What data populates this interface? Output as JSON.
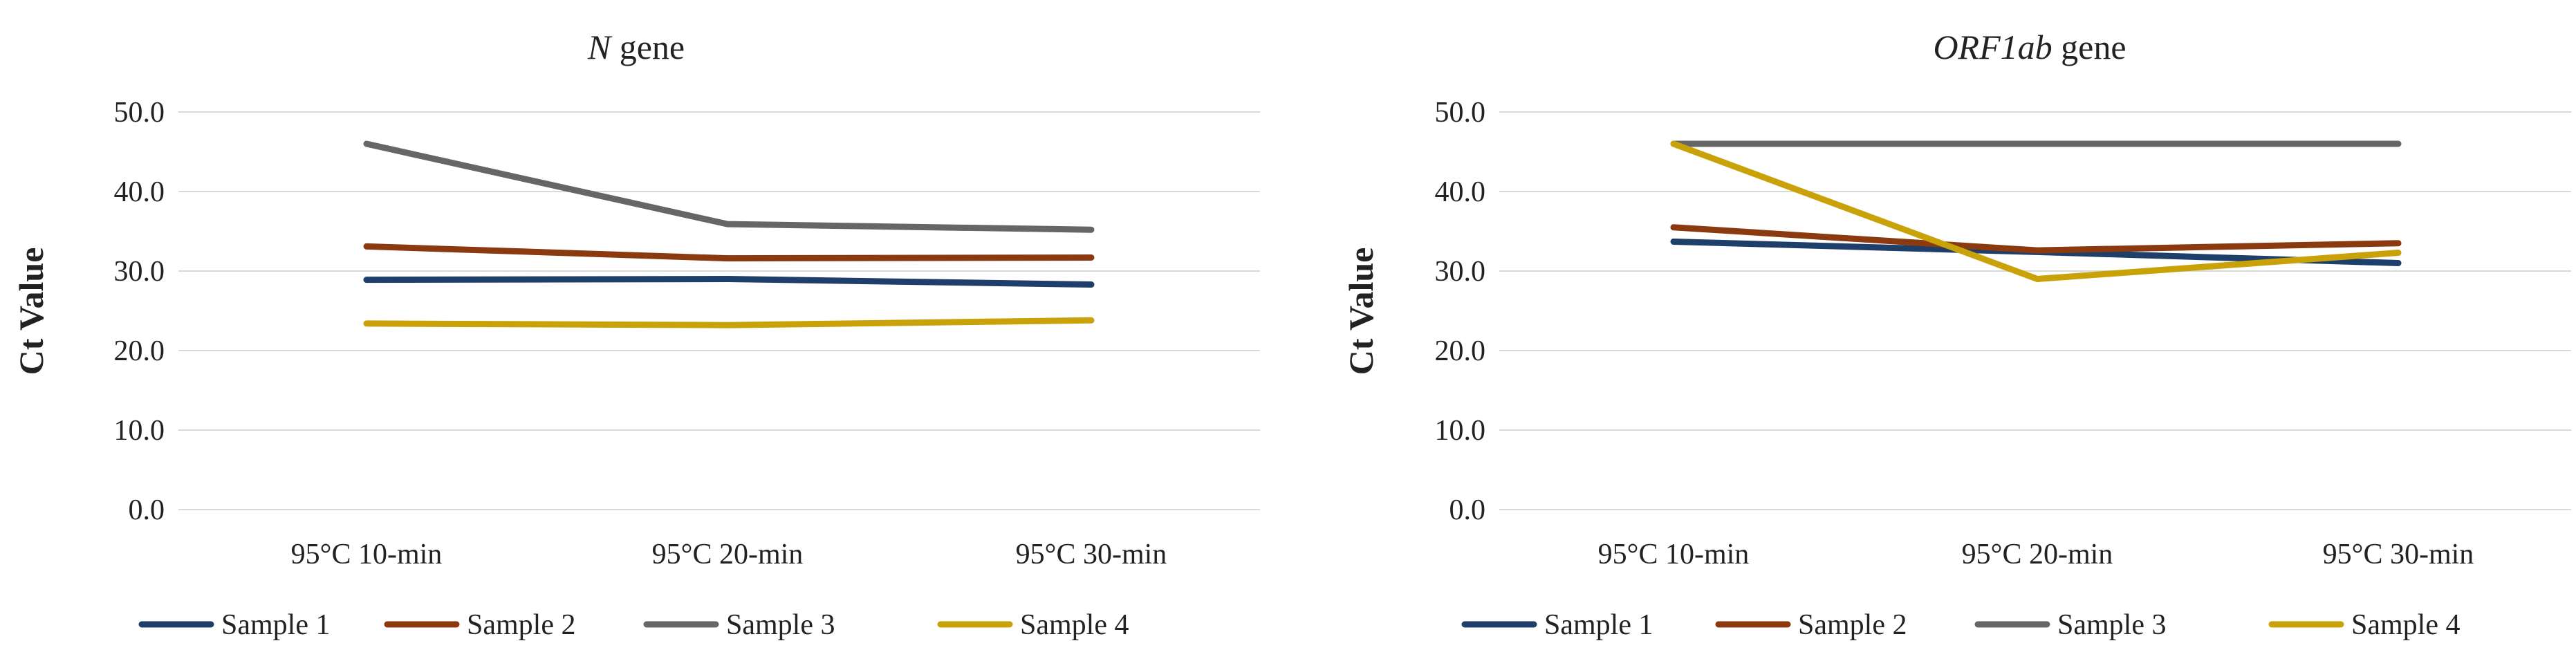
{
  "chart_data": [
    {
      "type": "line",
      "title_italic": "N",
      "title_rest": " gene",
      "xlabel": "",
      "ylabel": "Ct Value",
      "categories": [
        "95°C 10-min",
        "95°C 20-min",
        "95°C 30-min"
      ],
      "ylim": [
        0,
        50
      ],
      "yticks": [
        "0.0",
        "10.0",
        "20.0",
        "30.0",
        "40.0",
        "50.0"
      ],
      "grid": true,
      "legend": "bottom",
      "series": [
        {
          "name": "Sample 1",
          "color": "#1f3f6b",
          "values": [
            28.9,
            29.0,
            28.3
          ]
        },
        {
          "name": "Sample 2",
          "color": "#8b3a0f",
          "values": [
            33.1,
            31.6,
            31.7
          ]
        },
        {
          "name": "Sample 3",
          "color": "#666666",
          "values": [
            46.0,
            35.9,
            35.2
          ]
        },
        {
          "name": "Sample 4",
          "color": "#c9a20a",
          "values": [
            23.4,
            23.2,
            23.8
          ]
        }
      ]
    },
    {
      "type": "line",
      "title_italic": "ORF1ab",
      "title_rest": " gene",
      "xlabel": "",
      "ylabel": "Ct Value",
      "categories": [
        "95°C 10-min",
        "95°C 20-min",
        "95°C 30-min"
      ],
      "ylim": [
        0,
        50
      ],
      "yticks": [
        "0.0",
        "10.0",
        "20.0",
        "30.0",
        "40.0",
        "50.0"
      ],
      "grid": true,
      "legend": "bottom",
      "series": [
        {
          "name": "Sample 1",
          "color": "#1f3f6b",
          "values": [
            33.7,
            32.4,
            31.0
          ]
        },
        {
          "name": "Sample 2",
          "color": "#8b3a0f",
          "values": [
            35.5,
            32.6,
            33.5
          ]
        },
        {
          "name": "Sample 3",
          "color": "#666666",
          "values": [
            46.0,
            46.0,
            46.0
          ]
        },
        {
          "name": "Sample 4",
          "color": "#c9a20a",
          "values": [
            46.0,
            29.0,
            32.3
          ]
        }
      ]
    }
  ]
}
